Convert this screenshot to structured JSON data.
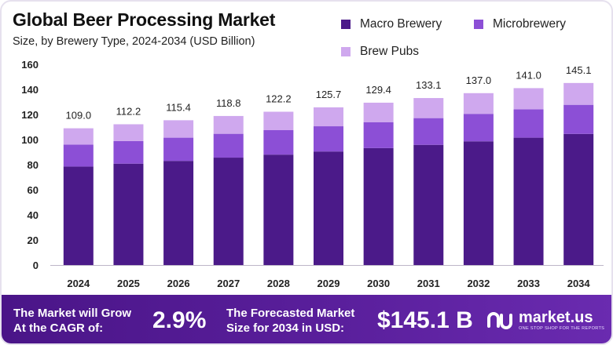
{
  "chart_data": {
    "type": "bar",
    "stacked": true,
    "title": "Global Beer Processing Market",
    "subtitle": "Size, by Brewery Type, 2024-2034 (USD Billion)",
    "categories": [
      "2024",
      "2025",
      "2026",
      "2027",
      "2028",
      "2029",
      "2030",
      "2031",
      "2032",
      "2033",
      "2034"
    ],
    "series": [
      {
        "name": "Macro Brewery",
        "color": "#4b1a89",
        "values": [
          78.5,
          80.8,
          83.0,
          85.6,
          88.0,
          90.5,
          93.2,
          95.8,
          98.6,
          101.5,
          104.5
        ]
      },
      {
        "name": "Microbrewery",
        "color": "#8c4fd6",
        "values": [
          17.5,
          18.0,
          18.5,
          19.0,
          19.5,
          20.1,
          20.7,
          21.3,
          21.9,
          22.6,
          23.2
        ]
      },
      {
        "name": "Brew Pubs",
        "color": "#cfa8ee",
        "values": [
          13.0,
          13.4,
          13.9,
          14.2,
          14.7,
          15.1,
          15.5,
          16.0,
          16.5,
          16.9,
          17.4
        ]
      }
    ],
    "totals": [
      "109.0",
      "112.2",
      "115.4",
      "118.8",
      "122.2",
      "125.7",
      "129.4",
      "133.1",
      "137.0",
      "141.0",
      "145.1"
    ],
    "yticks": [
      "0",
      "20",
      "40",
      "60",
      "80",
      "100",
      "120",
      "140",
      "160"
    ],
    "ylim": [
      0,
      160
    ],
    "xlabel": "",
    "ylabel": "",
    "legend_position": "top-right",
    "grid": false
  },
  "legend": {
    "macro": "Macro Brewery",
    "micro": "Microbrewery",
    "pubs": "Brew Pubs"
  },
  "footer": {
    "grow_line1": "The Market will Grow",
    "grow_line2": "At the CAGR of:",
    "cagr": "2.9%",
    "forecast_line1": "The Forecasted Market",
    "forecast_line2": "Size for 2034 in USD:",
    "value": "$145.1 B",
    "logo": "market.us",
    "tagline": "ONE STOP SHOP FOR THE REPORTS"
  },
  "colors": {
    "macro": "#4b1a89",
    "micro": "#8c4fd6",
    "pubs": "#cfa8ee",
    "footer": "#4a1588"
  }
}
